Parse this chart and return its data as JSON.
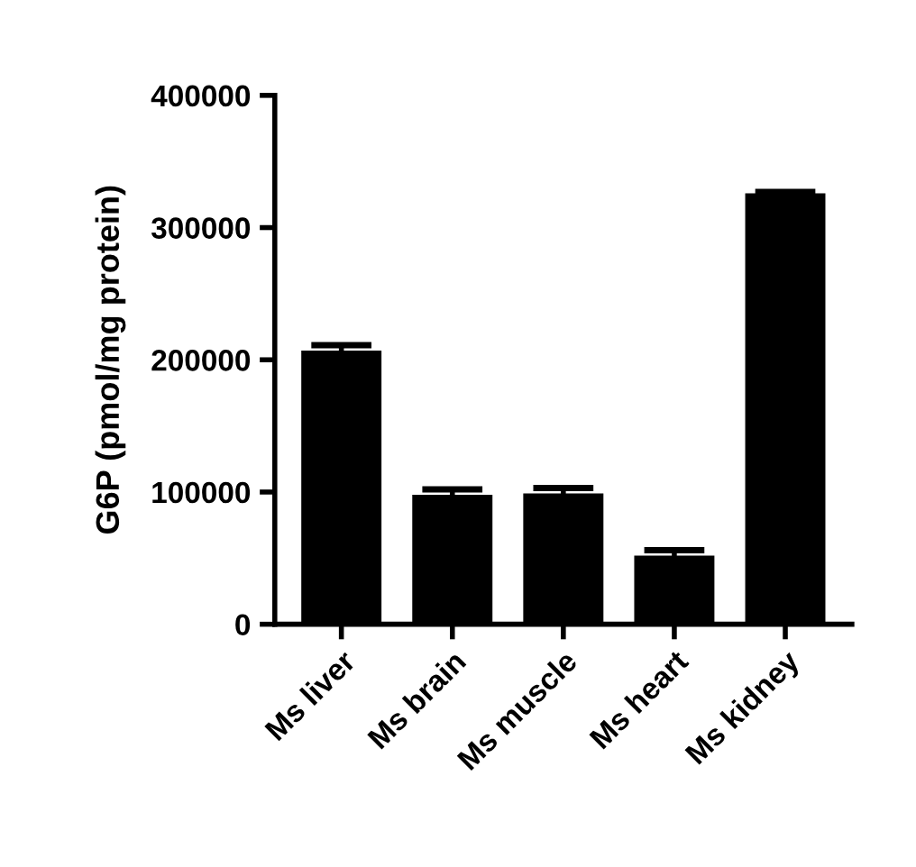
{
  "chart_data": {
    "type": "bar",
    "ylabel": "G6P (pmol/mg protein)",
    "categories": [
      "Ms liver",
      "Ms brain",
      "Ms muscle",
      "Ms heart",
      "Ms kidney"
    ],
    "values": [
      206000,
      97000,
      98000,
      51000,
      325000
    ],
    "errors": [
      5000,
      5000,
      5000,
      5000,
      2000
    ],
    "color": "#000000",
    "ylim": [
      0,
      400000
    ],
    "yticks": [
      0,
      100000,
      200000,
      300000,
      400000
    ],
    "grid": false,
    "legend": false
  }
}
